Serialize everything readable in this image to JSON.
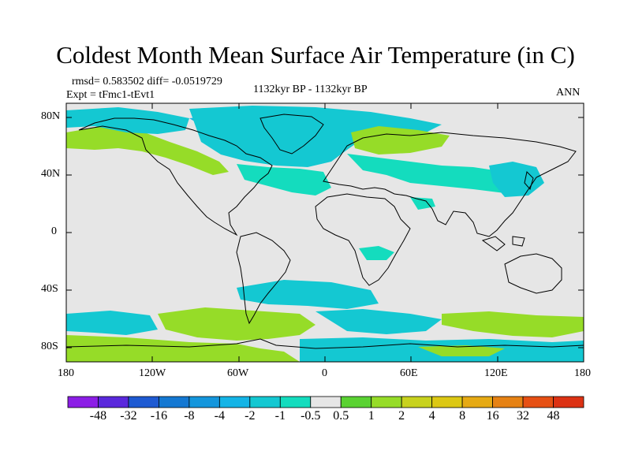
{
  "title": "Coldest Month Mean Surface Air Temperature (in C)",
  "stats": "rmsd= 0.583502 diff= -0.0519729",
  "experiment": "Expt = tFmc1-tEvt1",
  "period": "1132kyr BP - 1132kyr BP",
  "season": "ANN",
  "lat_ticks": [
    "80N",
    "40N",
    "0",
    "40S",
    "80S"
  ],
  "lon_ticks": [
    "180",
    "120W",
    "60W",
    "0",
    "60E",
    "120E",
    "180"
  ],
  "colorbar": {
    "labels": [
      "-48",
      "-32",
      "-16",
      "-8",
      "-4",
      "-2",
      "-1",
      "-0.5",
      "0.5",
      "1",
      "2",
      "4",
      "8",
      "16",
      "32",
      "48"
    ],
    "colors": [
      "#8c1ee6",
      "#5a28dc",
      "#1e5ad2",
      "#1478d2",
      "#1496dc",
      "#14b4e6",
      "#14c8d2",
      "#14dcbe",
      "#e6e6e6",
      "#5ad232",
      "#96dc28",
      "#c8d21e",
      "#dcc814",
      "#e6aa14",
      "#e68214",
      "#e65014",
      "#dc3214"
    ]
  },
  "colors": {
    "land_bg": "#e6e6e6",
    "cool": "#14c8d2",
    "cooler": "#14b4e6",
    "warm": "#5ad232",
    "warmer": "#96dc28",
    "coast": "#000000"
  }
}
